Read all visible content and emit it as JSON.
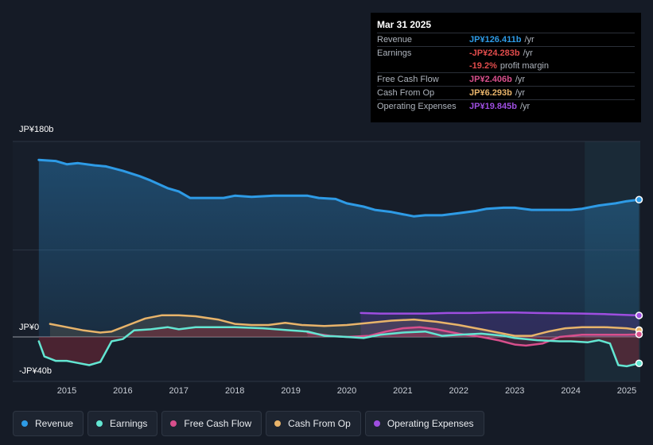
{
  "chart_data": {
    "type": "line",
    "title": "",
    "xlabel": "",
    "ylabel": "",
    "ylim": [
      -40,
      180
    ],
    "y_tick_labels": [
      "JP¥180b",
      "JP¥0",
      "-JP¥40b"
    ],
    "y_tick_values": [
      180,
      0,
      -40
    ],
    "x_ticks": [
      2015,
      2016,
      2017,
      2018,
      2019,
      2020,
      2021,
      2022,
      2023,
      2024,
      2025
    ],
    "x_tick_labels": [
      "2015",
      "2016",
      "2017",
      "2018",
      "2019",
      "2020",
      "2021",
      "2022",
      "2023",
      "2024",
      "2025"
    ],
    "xlim": [
      2014.5,
      2025.3
    ],
    "shaded_region_start": 2024.25,
    "series": [
      {
        "name": "Revenue",
        "color": "#2e9be6",
        "points": [
          [
            2014.5,
            163
          ],
          [
            2014.8,
            162
          ],
          [
            2015.0,
            159
          ],
          [
            2015.2,
            160
          ],
          [
            2015.5,
            158
          ],
          [
            2015.7,
            157
          ],
          [
            2016.0,
            153
          ],
          [
            2016.3,
            148
          ],
          [
            2016.5,
            144
          ],
          [
            2016.8,
            137
          ],
          [
            2017.0,
            134
          ],
          [
            2017.2,
            128
          ],
          [
            2017.5,
            128
          ],
          [
            2017.8,
            128
          ],
          [
            2018.0,
            130
          ],
          [
            2018.3,
            129
          ],
          [
            2018.7,
            130
          ],
          [
            2019.0,
            130
          ],
          [
            2019.3,
            130
          ],
          [
            2019.5,
            128
          ],
          [
            2019.8,
            127
          ],
          [
            2020.0,
            123
          ],
          [
            2020.3,
            120
          ],
          [
            2020.5,
            117
          ],
          [
            2020.8,
            115
          ],
          [
            2021.0,
            113
          ],
          [
            2021.2,
            111
          ],
          [
            2021.4,
            112
          ],
          [
            2021.7,
            112
          ],
          [
            2022.0,
            114
          ],
          [
            2022.3,
            116
          ],
          [
            2022.5,
            118
          ],
          [
            2022.8,
            119
          ],
          [
            2023.0,
            119
          ],
          [
            2023.3,
            117
          ],
          [
            2023.5,
            117
          ],
          [
            2023.8,
            117
          ],
          [
            2024.0,
            117
          ],
          [
            2024.2,
            118
          ],
          [
            2024.5,
            121
          ],
          [
            2024.8,
            123
          ],
          [
            2025.0,
            125
          ],
          [
            2025.22,
            126.4
          ]
        ]
      },
      {
        "name": "Earnings",
        "color": "#63e6d2",
        "points": [
          [
            2014.5,
            -4
          ],
          [
            2014.6,
            -18
          ],
          [
            2014.8,
            -22
          ],
          [
            2015.0,
            -22
          ],
          [
            2015.2,
            -24
          ],
          [
            2015.4,
            -26
          ],
          [
            2015.6,
            -23
          ],
          [
            2015.8,
            -4
          ],
          [
            2016.0,
            -2
          ],
          [
            2016.2,
            6
          ],
          [
            2016.5,
            7
          ],
          [
            2016.8,
            9
          ],
          [
            2017.0,
            7
          ],
          [
            2017.3,
            9
          ],
          [
            2017.6,
            9
          ],
          [
            2018.0,
            9
          ],
          [
            2018.5,
            8
          ],
          [
            2019.0,
            6
          ],
          [
            2019.3,
            5
          ],
          [
            2019.6,
            1
          ],
          [
            2020.0,
            0
          ],
          [
            2020.3,
            -1
          ],
          [
            2020.6,
            2
          ],
          [
            2021.0,
            4
          ],
          [
            2021.4,
            5
          ],
          [
            2021.7,
            1
          ],
          [
            2022.0,
            2
          ],
          [
            2022.4,
            3
          ],
          [
            2022.8,
            1
          ],
          [
            2023.0,
            -1
          ],
          [
            2023.4,
            -3
          ],
          [
            2023.8,
            -4
          ],
          [
            2024.0,
            -4
          ],
          [
            2024.3,
            -5
          ],
          [
            2024.5,
            -3
          ],
          [
            2024.7,
            -6
          ],
          [
            2024.85,
            -26
          ],
          [
            2025.0,
            -27
          ],
          [
            2025.22,
            -24.3
          ]
        ]
      },
      {
        "name": "Free Cash Flow",
        "color": "#d84f8c",
        "points": [
          [
            2019.3,
            4
          ],
          [
            2019.7,
            1
          ],
          [
            2020.0,
            0
          ],
          [
            2020.4,
            1
          ],
          [
            2020.7,
            5
          ],
          [
            2021.0,
            8
          ],
          [
            2021.3,
            9
          ],
          [
            2021.6,
            7
          ],
          [
            2022.0,
            3
          ],
          [
            2022.4,
            0
          ],
          [
            2022.7,
            -3
          ],
          [
            2023.0,
            -7
          ],
          [
            2023.2,
            -8
          ],
          [
            2023.5,
            -6
          ],
          [
            2023.8,
            0
          ],
          [
            2024.2,
            2
          ],
          [
            2024.6,
            2
          ],
          [
            2025.0,
            2
          ],
          [
            2025.22,
            2.4
          ]
        ]
      },
      {
        "name": "Cash From Op",
        "color": "#e8b46a",
        "points": [
          [
            2014.7,
            12
          ],
          [
            2015.0,
            9
          ],
          [
            2015.3,
            6
          ],
          [
            2015.6,
            4
          ],
          [
            2015.8,
            5
          ],
          [
            2016.1,
            11
          ],
          [
            2016.4,
            17
          ],
          [
            2016.7,
            20
          ],
          [
            2017.0,
            20
          ],
          [
            2017.3,
            19
          ],
          [
            2017.7,
            16
          ],
          [
            2018.0,
            12
          ],
          [
            2018.3,
            11
          ],
          [
            2018.6,
            11
          ],
          [
            2018.9,
            13
          ],
          [
            2019.2,
            11
          ],
          [
            2019.6,
            10
          ],
          [
            2020.0,
            11
          ],
          [
            2020.4,
            13
          ],
          [
            2020.8,
            15
          ],
          [
            2021.2,
            16
          ],
          [
            2021.6,
            14
          ],
          [
            2022.0,
            11
          ],
          [
            2022.4,
            7
          ],
          [
            2022.8,
            3
          ],
          [
            2023.0,
            1
          ],
          [
            2023.3,
            1
          ],
          [
            2023.6,
            5
          ],
          [
            2023.9,
            8
          ],
          [
            2024.2,
            9
          ],
          [
            2024.6,
            9
          ],
          [
            2025.0,
            8
          ],
          [
            2025.22,
            6.3
          ]
        ]
      },
      {
        "name": "Operating Expenses",
        "color": "#9e4ee0",
        "points": [
          [
            2020.25,
            22
          ],
          [
            2020.6,
            21.5
          ],
          [
            2021.0,
            21.5
          ],
          [
            2021.4,
            21.5
          ],
          [
            2021.8,
            22
          ],
          [
            2022.2,
            22
          ],
          [
            2022.6,
            22.5
          ],
          [
            2023.0,
            22.5
          ],
          [
            2023.4,
            22
          ],
          [
            2023.8,
            21.8
          ],
          [
            2024.2,
            21.5
          ],
          [
            2024.6,
            21
          ],
          [
            2025.0,
            20.2
          ],
          [
            2025.22,
            19.8
          ]
        ]
      }
    ]
  },
  "tooltip": {
    "date": "Mar 31 2025",
    "rows": [
      {
        "label": "Revenue",
        "value": "JP¥126.411b",
        "unit": "/yr",
        "color": "#2e9be6"
      },
      {
        "label": "Earnings",
        "value": "-JP¥24.283b",
        "unit": "/yr",
        "color": "#e24c4c"
      },
      {
        "label": "",
        "value": "-19.2%",
        "unit": "profit margin",
        "color": "#e24c4c"
      },
      {
        "label": "Free Cash Flow",
        "value": "JP¥2.406b",
        "unit": "/yr",
        "color": "#d84f8c"
      },
      {
        "label": "Cash From Op",
        "value": "JP¥6.293b",
        "unit": "/yr",
        "color": "#e8b46a"
      },
      {
        "label": "Operating Expenses",
        "value": "JP¥19.845b",
        "unit": "/yr",
        "color": "#9e4ee0"
      }
    ]
  },
  "legend": [
    {
      "label": "Revenue",
      "color": "#2e9be6"
    },
    {
      "label": "Earnings",
      "color": "#63e6d2"
    },
    {
      "label": "Free Cash Flow",
      "color": "#d84f8c"
    },
    {
      "label": "Cash From Op",
      "color": "#e8b46a"
    },
    {
      "label": "Operating Expenses",
      "color": "#9e4ee0"
    }
  ]
}
